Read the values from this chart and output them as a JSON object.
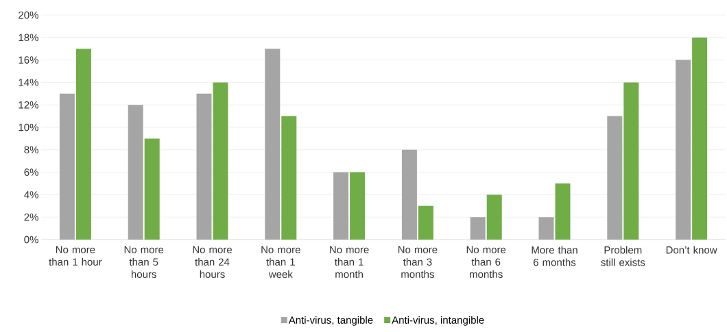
{
  "chart_data": {
    "type": "bar",
    "categories": [
      "No more than 1 hour",
      "No more than 5 hours",
      "No more than 24 hours",
      "No more than 1 week",
      "No more than 1 month",
      "No more than 3 months",
      "No more than 6 months",
      "More than 6 months",
      "Problem still exists",
      "Don’t know"
    ],
    "series": [
      {
        "name": "Anti-virus, tangible",
        "color": "#a5a5a5",
        "values": [
          13,
          12,
          13,
          17,
          6,
          8,
          2,
          2,
          11,
          16
        ]
      },
      {
        "name": "Anti-virus, intangible",
        "color": "#70ad47",
        "values": [
          17,
          9,
          14,
          11,
          6,
          3,
          4,
          5,
          14,
          18
        ]
      }
    ],
    "ylim": [
      0,
      20
    ],
    "yticks": [
      {
        "value": 0,
        "label": "0%"
      },
      {
        "value": 2,
        "label": "2%"
      },
      {
        "value": 4,
        "label": "4%"
      },
      {
        "value": 6,
        "label": "6%"
      },
      {
        "value": 8,
        "label": "8%"
      },
      {
        "value": 10,
        "label": "10%"
      },
      {
        "value": 12,
        "label": "12%"
      },
      {
        "value": 14,
        "label": "14%"
      },
      {
        "value": 16,
        "label": "16%"
      },
      {
        "value": 18,
        "label": "18%"
      },
      {
        "value": 20,
        "label": "20%"
      }
    ],
    "grid": "y",
    "legend": "bottom"
  }
}
